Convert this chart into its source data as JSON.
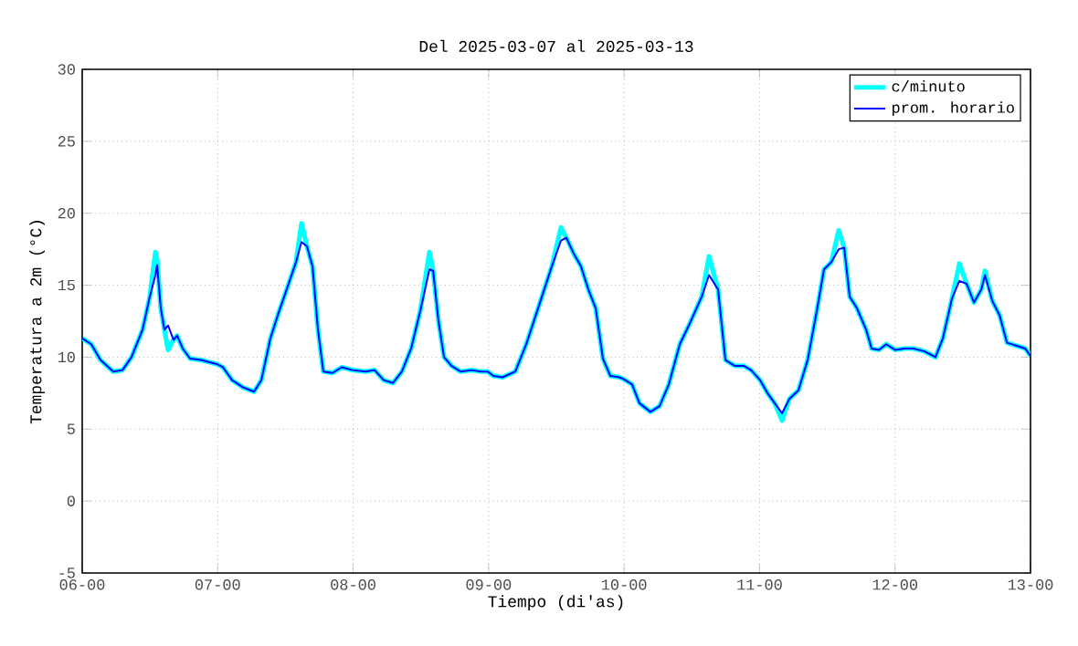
{
  "chart_data": {
    "type": "line",
    "title": "Del 2025-03-07 al 2025-03-13",
    "xlabel": "Tiempo (di'as)",
    "ylabel": "Temperatura a 2m (°C)",
    "x": [
      "2025-03-06T00:00",
      "2025-03-06T01:36",
      "2025-03-06T03:14",
      "2025-03-06T05:30",
      "2025-03-06T07:08",
      "2025-03-06T08:44",
      "2025-03-06T10:41",
      "2025-03-06T11:58",
      "2025-03-06T12:58",
      "2025-03-06T13:16",
      "2025-03-06T13:55",
      "2025-03-06T14:34",
      "2025-03-06T15:13",
      "2025-03-06T16:10",
      "2025-03-06T16:49",
      "2025-03-06T17:48",
      "2025-03-06T19:06",
      "2025-03-06T21:02",
      "2025-03-06T23:57",
      "2025-03-07T00:56",
      "2025-03-07T02:33",
      "2025-03-07T04:29",
      "2025-03-07T06:26",
      "2025-03-07T07:44",
      "2025-03-07T09:20",
      "2025-03-07T10:38",
      "2025-03-07T12:34",
      "2025-03-07T13:52",
      "2025-03-07T14:51",
      "2025-03-07T15:49",
      "2025-03-07T16:48",
      "2025-03-07T17:46",
      "2025-03-07T18:43",
      "2025-03-07T20:21",
      "2025-03-07T21:58",
      "2025-03-07T23:54",
      "2025-03-08T02:11",
      "2025-03-08T03:47",
      "2025-03-08T05:25",
      "2025-03-08T07:02",
      "2025-03-08T08:38",
      "2025-03-08T10:16",
      "2025-03-08T11:53",
      "2025-03-08T13:31",
      "2025-03-08T14:10",
      "2025-03-08T15:07",
      "2025-03-08T16:06",
      "2025-03-08T17:24",
      "2025-03-08T19:00",
      "2025-03-08T20:57",
      "2025-03-08T22:34",
      "2025-03-08T23:51",
      "2025-03-09T00:50",
      "2025-03-09T02:27",
      "2025-03-09T04:44",
      "2025-03-09T06:40",
      "2025-03-09T08:56",
      "2025-03-09T11:11",
      "2025-03-09T12:49",
      "2025-03-09T13:46",
      "2025-03-09T15:04",
      "2025-03-09T16:22",
      "2025-03-09T17:40",
      "2025-03-09T18:58",
      "2025-03-09T20:15",
      "2025-03-09T21:33",
      "2025-03-09T23:10",
      "2025-03-09T23:48",
      "2025-03-10T01:25",
      "2025-03-10T02:43",
      "2025-03-10T04:39",
      "2025-03-10T06:17",
      "2025-03-10T07:55",
      "2025-03-10T09:52",
      "2025-03-10T11:28",
      "2025-03-10T13:45",
      "2025-03-10T15:03",
      "2025-03-10T16:39",
      "2025-03-10T17:57",
      "2025-03-10T19:34",
      "2025-03-10T21:11",
      "2025-03-10T22:29",
      "2025-03-11T00:06",
      "2025-03-11T01:24",
      "2025-03-11T02:41",
      "2025-03-11T03:59",
      "2025-03-11T05:17",
      "2025-03-11T06:53",
      "2025-03-11T08:31",
      "2025-03-11T10:08",
      "2025-03-11T11:25",
      "2025-03-11T12:43",
      "2025-03-11T14:01",
      "2025-03-11T15:00",
      "2025-03-11T15:58",
      "2025-03-11T17:15",
      "2025-03-11T18:53",
      "2025-03-11T19:51",
      "2025-03-11T21:09",
      "2025-03-11T22:26",
      "2025-03-12T00:03",
      "2025-03-12T01:39",
      "2025-03-12T03:17",
      "2025-03-12T05:14",
      "2025-03-12T07:10",
      "2025-03-12T08:28",
      "2025-03-12T10:06",
      "2025-03-12T11:24",
      "2025-03-12T12:41",
      "2025-03-12T13:59",
      "2025-03-12T15:17",
      "2025-03-12T15:56",
      "2025-03-12T17:14",
      "2025-03-12T18:32",
      "2025-03-12T19:50",
      "2025-03-12T21:26",
      "2025-03-12T23:04",
      "2025-03-13T00:00"
    ],
    "series": [
      {
        "name": "c/minuto",
        "color": "#00ffff",
        "values": [
          11.3,
          10.9,
          9.8,
          9.0,
          9.1,
          10.0,
          11.9,
          14.2,
          17.3,
          16.8,
          13.4,
          11.9,
          10.5,
          11.2,
          11.5,
          10.6,
          9.9,
          9.8,
          9.5,
          9.3,
          8.4,
          7.9,
          7.6,
          8.4,
          11.3,
          12.9,
          15.1,
          16.6,
          19.3,
          17.7,
          16.3,
          11.9,
          9.0,
          8.9,
          9.3,
          9.1,
          9.0,
          9.1,
          8.4,
          8.2,
          9.0,
          10.6,
          13.2,
          17.3,
          16.0,
          12.5,
          10.0,
          9.4,
          9.0,
          9.1,
          9.0,
          9.0,
          8.7,
          8.6,
          9.0,
          10.9,
          13.6,
          16.3,
          19.0,
          18.3,
          17.2,
          16.3,
          14.7,
          13.4,
          9.9,
          8.7,
          8.6,
          8.5,
          8.1,
          6.8,
          6.2,
          6.6,
          8.1,
          10.9,
          12.2,
          14.2,
          17.0,
          14.7,
          9.8,
          9.4,
          9.4,
          9.1,
          8.4,
          7.5,
          6.8,
          5.6,
          7.1,
          7.7,
          9.8,
          13.2,
          16.1,
          16.6,
          18.8,
          17.6,
          14.2,
          13.4,
          11.9,
          10.6,
          10.5,
          10.9,
          10.5,
          10.6,
          10.6,
          10.4,
          10.0,
          11.3,
          14.1,
          16.5,
          15.1,
          13.8,
          14.7,
          16.0,
          13.9,
          12.9,
          11.0,
          10.8,
          10.6,
          10.1
        ]
      },
      {
        "name": "prom. horario",
        "color": "#0000ff",
        "values": [
          11.3,
          10.9,
          9.8,
          9.0,
          9.1,
          10.0,
          11.9,
          14.2,
          15.7,
          16.4,
          13.4,
          11.9,
          12.2,
          11.2,
          11.5,
          10.6,
          9.9,
          9.8,
          9.5,
          9.3,
          8.4,
          7.9,
          7.6,
          8.4,
          11.3,
          12.9,
          15.1,
          16.6,
          18.0,
          17.7,
          16.3,
          11.9,
          9.0,
          8.9,
          9.3,
          9.1,
          9.0,
          9.1,
          8.4,
          8.2,
          9.0,
          10.6,
          13.2,
          16.1,
          16.0,
          12.5,
          10.0,
          9.4,
          9.0,
          9.1,
          9.0,
          9.0,
          8.7,
          8.6,
          9.0,
          10.9,
          13.6,
          16.3,
          18.1,
          18.3,
          17.2,
          16.3,
          14.7,
          13.4,
          9.9,
          8.7,
          8.6,
          8.5,
          8.1,
          6.8,
          6.2,
          6.6,
          8.1,
          10.9,
          12.2,
          14.2,
          15.7,
          14.7,
          9.8,
          9.4,
          9.4,
          9.1,
          8.4,
          7.5,
          6.8,
          6.1,
          7.1,
          7.7,
          9.8,
          13.2,
          16.1,
          16.6,
          17.5,
          17.6,
          14.2,
          13.4,
          11.9,
          10.6,
          10.5,
          10.9,
          10.5,
          10.6,
          10.6,
          10.4,
          10.0,
          11.3,
          14.1,
          15.3,
          15.1,
          13.8,
          14.7,
          15.7,
          13.9,
          12.9,
          11.0,
          10.8,
          10.6,
          10.1
        ]
      }
    ],
    "xlim": [
      "2025-03-06T00:00",
      "2025-03-13T00:00"
    ],
    "xticks": [
      {
        "value": "2025-03-06T00:00",
        "label": "06-00"
      },
      {
        "value": "2025-03-07T00:00",
        "label": "07-00"
      },
      {
        "value": "2025-03-08T00:00",
        "label": "08-00"
      },
      {
        "value": "2025-03-09T00:00",
        "label": "09-00"
      },
      {
        "value": "2025-03-10T00:00",
        "label": "10-00"
      },
      {
        "value": "2025-03-11T00:00",
        "label": "11-00"
      },
      {
        "value": "2025-03-12T00:00",
        "label": "12-00"
      },
      {
        "value": "2025-03-13T00:00",
        "label": "13-00"
      }
    ],
    "ylim": [
      -5,
      30
    ],
    "yticks": [
      -5,
      0,
      5,
      10,
      15,
      20,
      25,
      30
    ],
    "grid": true,
    "legend": "top right",
    "marker": "none",
    "line_style": "solid"
  }
}
